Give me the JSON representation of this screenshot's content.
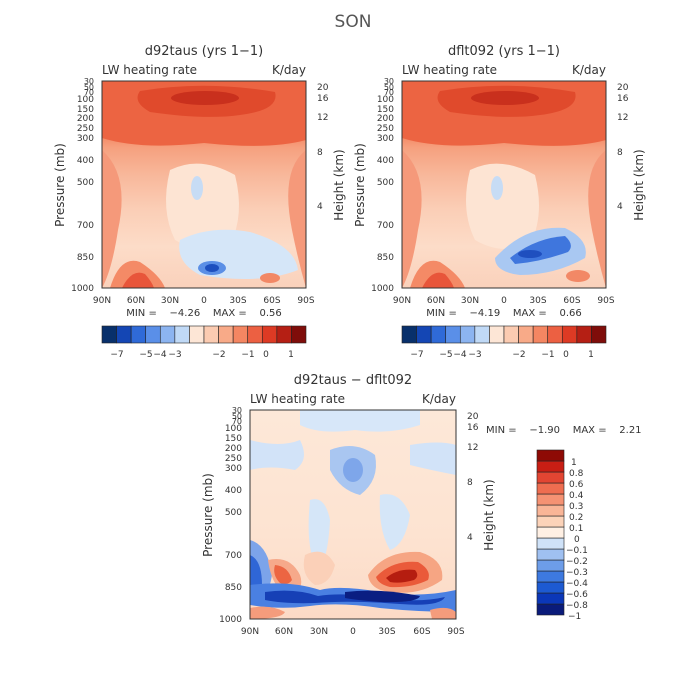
{
  "title": "SON",
  "colors": {
    "panel_scale": [
      "#08306b",
      "#1446b4",
      "#2f6ad8",
      "#5a8fe8",
      "#8cb4f0",
      "#c0d9f6",
      "#fde6d6",
      "#fbcbb1",
      "#f8aa88",
      "#f48662",
      "#ec6042",
      "#dd3a24",
      "#b51f14",
      "#7f0d0a"
    ],
    "diff_scale": [
      "#0a1b7a",
      "#0b37b8",
      "#1d5ad2",
      "#3d79e0",
      "#6d9de9",
      "#9fc0f1",
      "#cfe2f8",
      "#fff0e4",
      "#fcd3b9",
      "#f9b597",
      "#f59273",
      "#ee6d50",
      "#e24532",
      "#c81e14",
      "#8e0a05"
    ]
  },
  "chart_data": [
    {
      "type": "heatmap",
      "title": "d92taus (yrs 1−1)",
      "subtitle_left": "LW heating rate",
      "subtitle_right": "K/day",
      "xlabel": "",
      "ylabel": "Pressure (mb)",
      "ylabel_right": "Height (km)",
      "x_ticks": [
        "90N",
        "60N",
        "30N",
        "0",
        "30S",
        "60S",
        "90S"
      ],
      "y_ticks": [
        "30",
        "50",
        "70",
        "100",
        "150",
        "200",
        "250",
        "300",
        "400",
        "500",
        "700",
        "850",
        "1000"
      ],
      "y_ticks_right": [
        "20",
        "16",
        "12",
        "8",
        "4"
      ],
      "min_max_text": "MIN =    −4.26    MAX =    0.56",
      "min": -4.26,
      "max": 0.56,
      "colorbar": {
        "orientation": "horizontal",
        "labels": [
          "−7",
          "−5",
          "−4",
          "−3",
          "−2",
          "−1",
          "0",
          "1"
        ]
      }
    },
    {
      "type": "heatmap",
      "title": "dflt092 (yrs 1−1)",
      "subtitle_left": "LW heating rate",
      "subtitle_right": "K/day",
      "xlabel": "",
      "ylabel": "Pressure (mb)",
      "ylabel_right": "Height (km)",
      "x_ticks": [
        "90N",
        "60N",
        "30N",
        "0",
        "30S",
        "60S",
        "90S"
      ],
      "y_ticks": [
        "30",
        "50",
        "70",
        "100",
        "150",
        "200",
        "250",
        "300",
        "400",
        "500",
        "700",
        "850",
        "1000"
      ],
      "y_ticks_right": [
        "20",
        "16",
        "12",
        "8",
        "4"
      ],
      "min_max_text": "MIN =    −4.19    MAX =    0.66",
      "min": -4.19,
      "max": 0.66,
      "colorbar": {
        "orientation": "horizontal",
        "labels": [
          "−7",
          "−5",
          "−4",
          "−3",
          "−2",
          "−1",
          "0",
          "1"
        ]
      }
    },
    {
      "type": "heatmap",
      "title": "d92taus − dflt092",
      "subtitle_left": "LW heating rate",
      "subtitle_right": "K/day",
      "xlabel": "",
      "ylabel": "Pressure (mb)",
      "ylabel_right": "Height (km)",
      "x_ticks": [
        "90N",
        "60N",
        "30N",
        "0",
        "30S",
        "60S",
        "90S"
      ],
      "y_ticks": [
        "30",
        "50",
        "70",
        "100",
        "150",
        "200",
        "250",
        "300",
        "400",
        "500",
        "700",
        "850",
        "1000"
      ],
      "y_ticks_right": [
        "20",
        "16",
        "12",
        "8",
        "4"
      ],
      "min_max_text": "MIN =    −1.90    MAX =    2.21",
      "min": -1.9,
      "max": 2.21,
      "colorbar": {
        "orientation": "vertical",
        "labels": [
          "1",
          "0.8",
          "0.6",
          "0.4",
          "0.3",
          "0.2",
          "0.1",
          "0",
          "−0.1",
          "−0.2",
          "−0.3",
          "−0.4",
          "−0.6",
          "−0.8",
          "−1"
        ]
      }
    }
  ]
}
